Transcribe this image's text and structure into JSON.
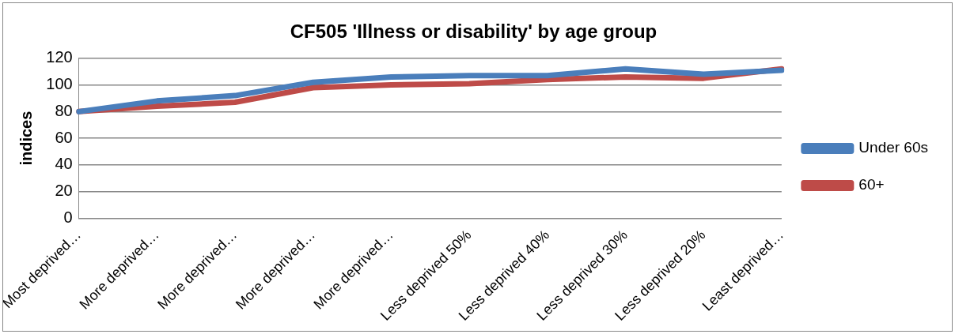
{
  "chart_data": {
    "type": "line",
    "title": "CF505 'Illness or disability' by age group",
    "ylabel": "indices",
    "categories": [
      "Most deprived…",
      "More deprived…",
      "More deprived…",
      "More deprived…",
      "More deprived…",
      "Less deprived 50%",
      "Less deprived 40%",
      "Less deprived 30%",
      "Less deprived 20%",
      "Least deprived…"
    ],
    "series": [
      {
        "name": "Under 60s",
        "color": "#4a7ebb",
        "values": [
          80,
          88,
          92,
          102,
          106,
          107,
          107,
          112,
          108,
          111
        ]
      },
      {
        "name": "60+",
        "color": "#be4b48",
        "values": [
          80,
          84,
          87,
          98,
          100,
          101,
          104,
          106,
          105,
          112
        ]
      }
    ],
    "ylim": [
      0,
      120
    ],
    "yticks": [
      0,
      20,
      40,
      60,
      80,
      100,
      120
    ],
    "grid": "y",
    "legend": "right",
    "marker": "none",
    "line_style": "solid"
  }
}
